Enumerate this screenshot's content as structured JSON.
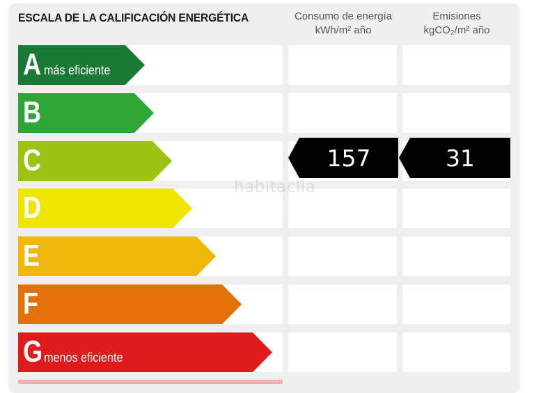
{
  "title": "ESCALA DE LA CALIFICACIÓN ENERGÉTICA",
  "columns": {
    "consumo": {
      "line1": "Consumo de energía",
      "line2": "kWh/m² año"
    },
    "emisiones": {
      "line1": "Emisiones",
      "line2": "kgCO₂/m² año"
    }
  },
  "ratings": [
    {
      "letter": "A",
      "label": "más eficiente",
      "color": "#1a7a35"
    },
    {
      "letter": "B",
      "label": "",
      "color": "#2fa638"
    },
    {
      "letter": "C",
      "label": "",
      "color": "#9cc212"
    },
    {
      "letter": "D",
      "label": "",
      "color": "#efe600"
    },
    {
      "letter": "E",
      "label": "",
      "color": "#f1b80c"
    },
    {
      "letter": "F",
      "label": "",
      "color": "#e4700a"
    },
    {
      "letter": "G",
      "label": "menos eficiente",
      "color": "#df1c1d"
    }
  ],
  "current_rating": "C",
  "consumo_value": "157",
  "emisiones_value": "31",
  "watermark": "habitaclia"
}
